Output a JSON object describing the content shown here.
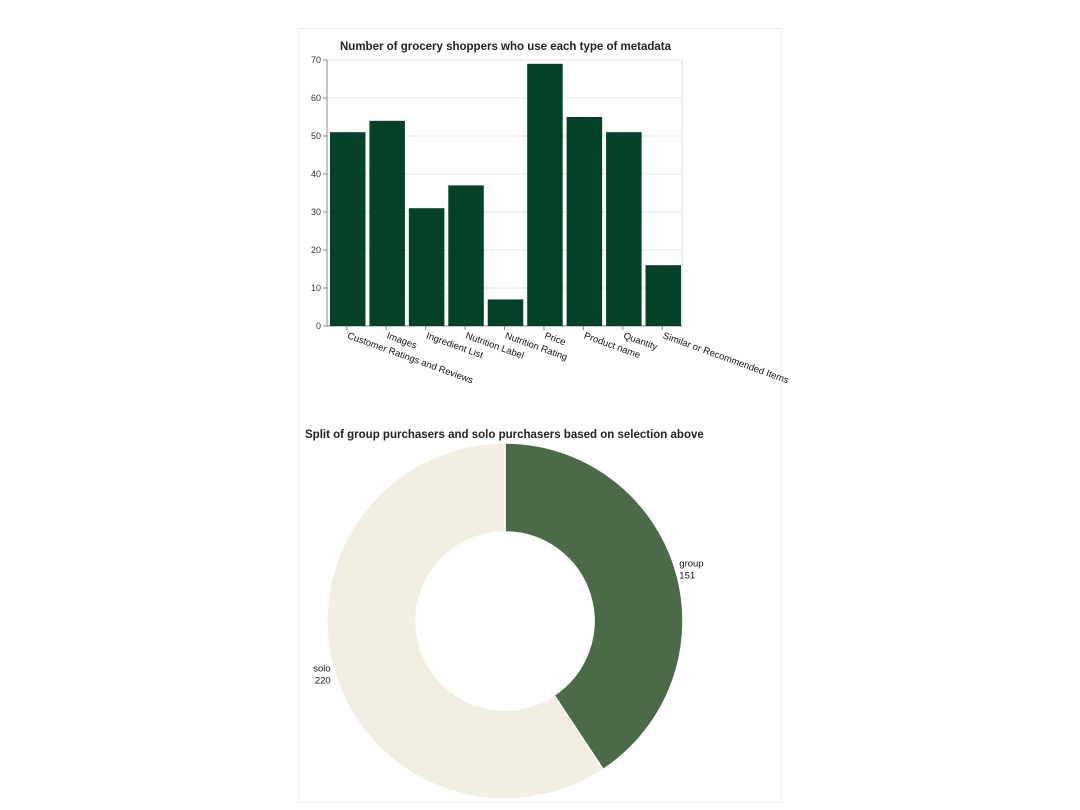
{
  "chart_data": [
    {
      "type": "bar",
      "title": "Number of grocery shoppers who use each type of metadata",
      "categories": [
        "Customer Ratings and Reviews",
        "Images",
        "Ingredient List",
        "Nutrition Label",
        "Nutrition Rating",
        "Price",
        "Product name",
        "Quantity",
        "Similar or Recommended Items"
      ],
      "values": [
        51,
        54,
        31,
        37,
        7,
        69,
        55,
        51,
        16
      ],
      "ylim": [
        0,
        70
      ],
      "yticks": [
        0,
        10,
        20,
        30,
        40,
        50,
        60,
        70
      ],
      "xlabel": "",
      "ylabel": "",
      "grid": true,
      "bar_color": "#034128"
    },
    {
      "type": "pie",
      "title": "Split of group purchasers and solo purchasers based on selection above",
      "slices": [
        {
          "label": "group",
          "value": 151,
          "color": "#4b6b48"
        },
        {
          "label": "solo",
          "value": 220,
          "color": "#f3eee2"
        }
      ],
      "donut": true
    }
  ]
}
